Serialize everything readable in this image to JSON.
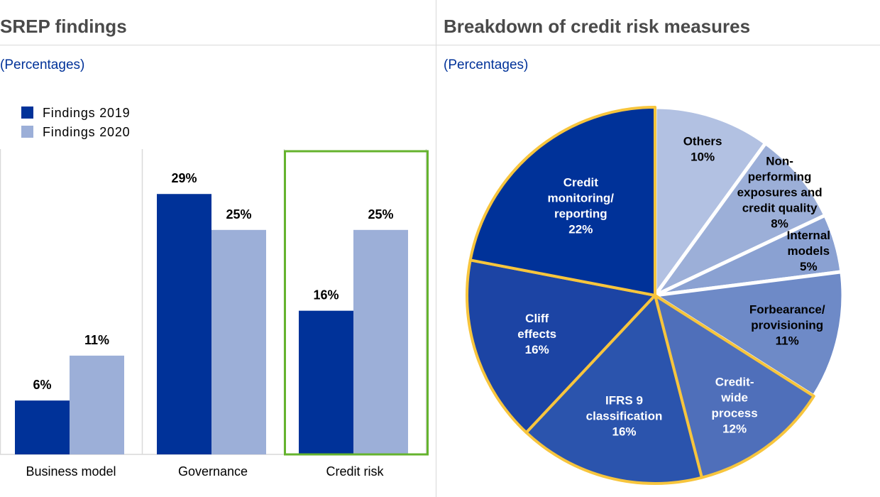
{
  "left": {
    "title": "SREP findings",
    "subtitle": "(Percentages)"
  },
  "right": {
    "title": "Breakdown of credit risk measures",
    "subtitle": "(Percentages)"
  },
  "colors": {
    "findings_2019": "#003299",
    "findings_2020": "#9cafd8",
    "highlight_box": "#65b32e",
    "pie_outline": "#f7c53d"
  },
  "chart_data": [
    {
      "type": "bar",
      "title": "SREP findings",
      "subtitle": "(Percentages)",
      "categories": [
        "Business model",
        "Governance",
        "Credit risk"
      ],
      "series": [
        {
          "name": "Findings 2019",
          "values": [
            6,
            29,
            16
          ],
          "labels": [
            "6%",
            "29%",
            "16%"
          ],
          "color": "#003299"
        },
        {
          "name": "Findings 2020",
          "values": [
            11,
            25,
            25
          ],
          "labels": [
            "11%",
            "25%",
            "25%"
          ],
          "color": "#9cafd8"
        }
      ],
      "ylim": [
        0,
        34
      ],
      "legend": "top-left",
      "grid": false,
      "highlighted_category": "Credit risk"
    },
    {
      "type": "pie",
      "title": "Breakdown of credit risk measures",
      "subtitle": "(Percentages)",
      "slices": [
        {
          "lines": [
            "Others",
            "10%"
          ],
          "value": 10,
          "color": "#b2c1e2",
          "text_color": "#000000",
          "highlight": false
        },
        {
          "lines": [
            "Non-",
            "performing",
            "exposures and",
            "credit quality",
            "8%"
          ],
          "value": 8,
          "color": "#9cafd8",
          "text_color": "#000000",
          "highlight": false
        },
        {
          "lines": [
            "Internal",
            "models",
            "5%"
          ],
          "value": 5,
          "color": "#8aa1d2",
          "text_color": "#000000",
          "highlight": false
        },
        {
          "lines": [
            "Forbearance/",
            "provisioning",
            "11%"
          ],
          "value": 11,
          "color": "#6e8ac7",
          "text_color": "#000000",
          "highlight": false
        },
        {
          "lines": [
            "Credit-",
            "wide",
            "process",
            "12%"
          ],
          "value": 12,
          "color": "#4f6fba",
          "text_color": "#ffffff",
          "highlight": true
        },
        {
          "lines": [
            "IFRS 9",
            "classification",
            "16%"
          ],
          "value": 16,
          "color": "#2b54ad",
          "text_color": "#ffffff",
          "highlight": true
        },
        {
          "lines": [
            "Cliff",
            "effects",
            "16%"
          ],
          "value": 16,
          "color": "#1c44a4",
          "text_color": "#ffffff",
          "highlight": true
        },
        {
          "lines": [
            "Credit",
            "monitoring/",
            "reporting",
            "22%"
          ],
          "value": 22,
          "color": "#003299",
          "text_color": "#ffffff",
          "highlight": true
        }
      ]
    }
  ]
}
